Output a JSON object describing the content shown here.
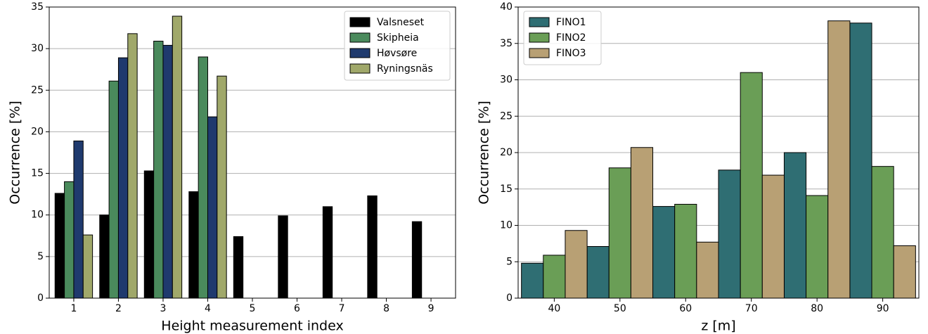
{
  "chart_data": [
    {
      "type": "bar",
      "xlabel": "Height measurement index",
      "ylabel": "Occurrence [%]",
      "categories": [
        "1",
        "2",
        "3",
        "4",
        "5",
        "6",
        "7",
        "8",
        "9"
      ],
      "series": [
        {
          "name": "Valsneset",
          "color": "#000000",
          "values": [
            12.6,
            10,
            15.3,
            12.8,
            7.4,
            9.9,
            11,
            12.3,
            9.2
          ]
        },
        {
          "name": "Skipheia",
          "color": "#4a8a5c",
          "values": [
            14,
            26.1,
            30.9,
            29,
            null,
            null,
            null,
            null,
            null
          ]
        },
        {
          "name": "Høvsøre",
          "color": "#1f3a6e",
          "values": [
            18.9,
            28.9,
            30.4,
            21.8,
            null,
            null,
            null,
            null,
            null
          ]
        },
        {
          "name": "Ryningsnäs",
          "color": "#a0a86a",
          "values": [
            7.6,
            31.8,
            33.9,
            26.7,
            null,
            null,
            null,
            null,
            null
          ]
        }
      ],
      "ylim": [
        0,
        35
      ],
      "yticks": [
        0,
        5,
        10,
        15,
        20,
        25,
        30,
        35
      ],
      "grid": true,
      "legend": "upper right"
    },
    {
      "type": "bar",
      "xlabel": "z [m]",
      "ylabel": "Occurrence [%]",
      "categories": [
        "40",
        "50",
        "60",
        "70",
        "80",
        "90"
      ],
      "series": [
        {
          "name": "FINO1",
          "color": "#2f6e73",
          "values": [
            4.8,
            7.1,
            12.6,
            17.6,
            20,
            37.8
          ]
        },
        {
          "name": "FINO2",
          "color": "#6a9e56",
          "values": [
            5.9,
            17.9,
            12.9,
            31,
            14.1,
            18.1
          ]
        },
        {
          "name": "FINO3",
          "color": "#b8a074",
          "values": [
            9.3,
            20.7,
            7.7,
            16.9,
            38.1,
            7.2
          ]
        }
      ],
      "ylim": [
        0,
        40
      ],
      "yticks": [
        0,
        5,
        10,
        15,
        20,
        25,
        30,
        35,
        40
      ],
      "grid": true,
      "legend": "upper left"
    }
  ]
}
